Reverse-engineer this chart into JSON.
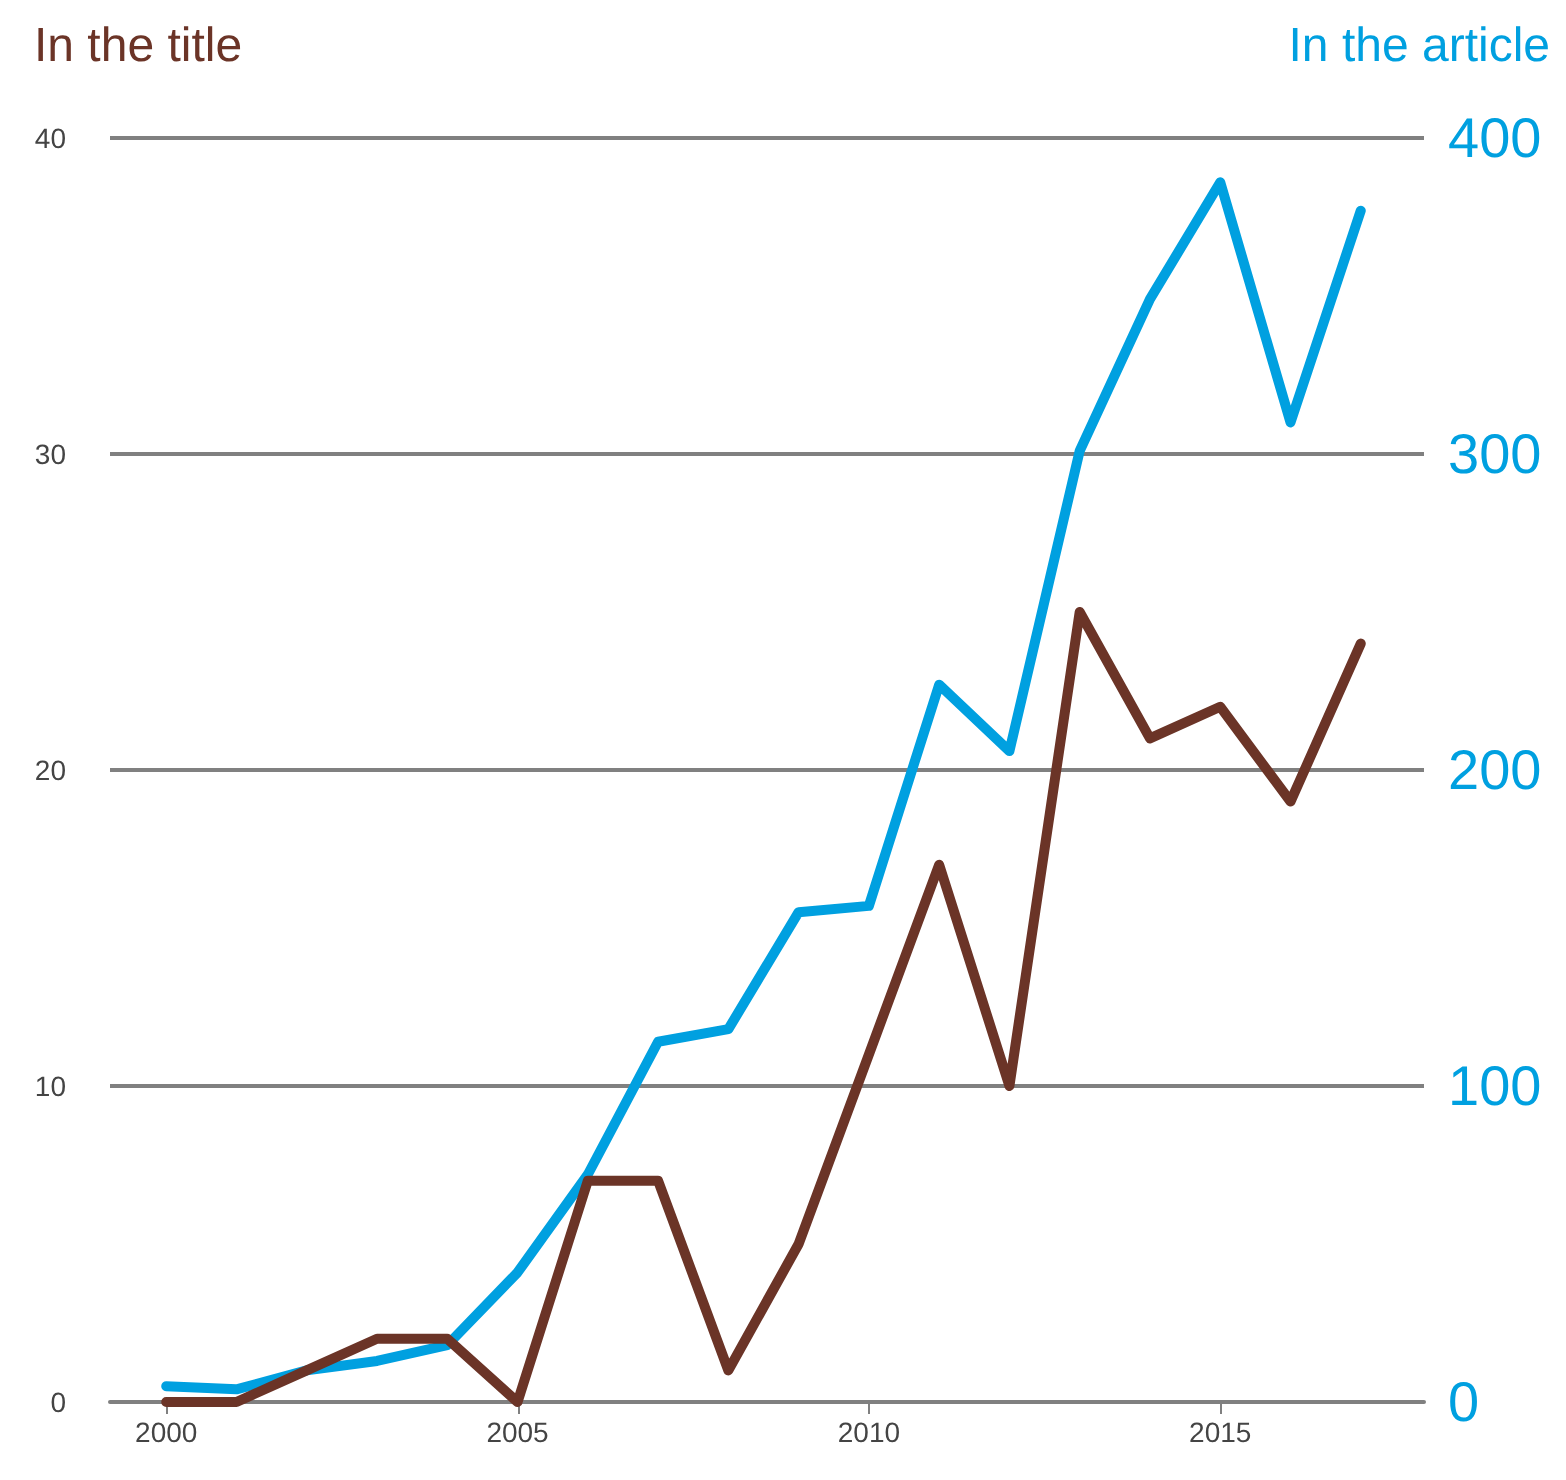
{
  "chart_data": {
    "type": "line",
    "ylabel": "In the title",
    "y2label": "In the article",
    "x": [
      2000,
      2001,
      2002,
      2003,
      2004,
      2005,
      2006,
      2007,
      2008,
      2009,
      2010,
      2011,
      2012,
      2013,
      2014,
      2015,
      2016,
      2017
    ],
    "series": [
      {
        "color": "#6b3427",
        "values": [
          0,
          0,
          1,
          2,
          2,
          0,
          7,
          7,
          1,
          5,
          11,
          17,
          10,
          25,
          21,
          22,
          19,
          24
        ]
      },
      {
        "color": "#00a0e0",
        "axis": "y2",
        "values": [
          5,
          4,
          10,
          13,
          18,
          41,
          72,
          114,
          118,
          155,
          157,
          227,
          206,
          301,
          349,
          386,
          310,
          377
        ]
      }
    ],
    "xlim": [
      1999.2,
      2017.9
    ],
    "xticks": [
      2000,
      2005,
      2010,
      2015
    ],
    "ylim": [
      0,
      40
    ],
    "yticks": [
      0,
      10,
      20,
      30,
      40
    ],
    "y2lim": [
      0,
      400
    ],
    "y2ticks": [
      0,
      100,
      200,
      300,
      400
    ],
    "grid": "y",
    "marker": "none",
    "line_style": "solid"
  }
}
